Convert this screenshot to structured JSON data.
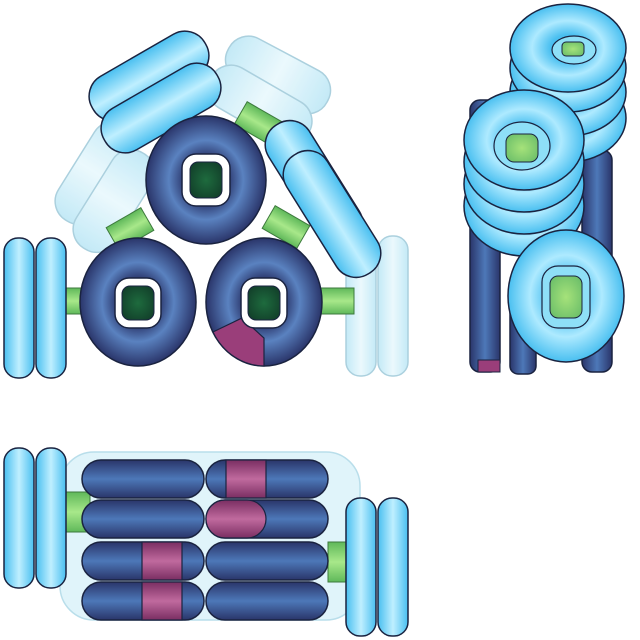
{
  "diagram": {
    "views": [
      {
        "id": "front-view",
        "description": ""
      },
      {
        "id": "side-view",
        "description": ""
      },
      {
        "id": "top-view",
        "description": ""
      }
    ],
    "colors": {
      "light_ring": "#5fd0f2",
      "light_ring_highlight": "#bfefff",
      "faded_ring": "#cdeef8",
      "dark_ring": "#2d3c72",
      "dark_ring_highlight": "#4d78b8",
      "green_core": "#2e7d4a",
      "green_rod": "#7fd16a",
      "magenta_segment": "#9a3e7a",
      "outline": "#1a2340"
    }
  }
}
